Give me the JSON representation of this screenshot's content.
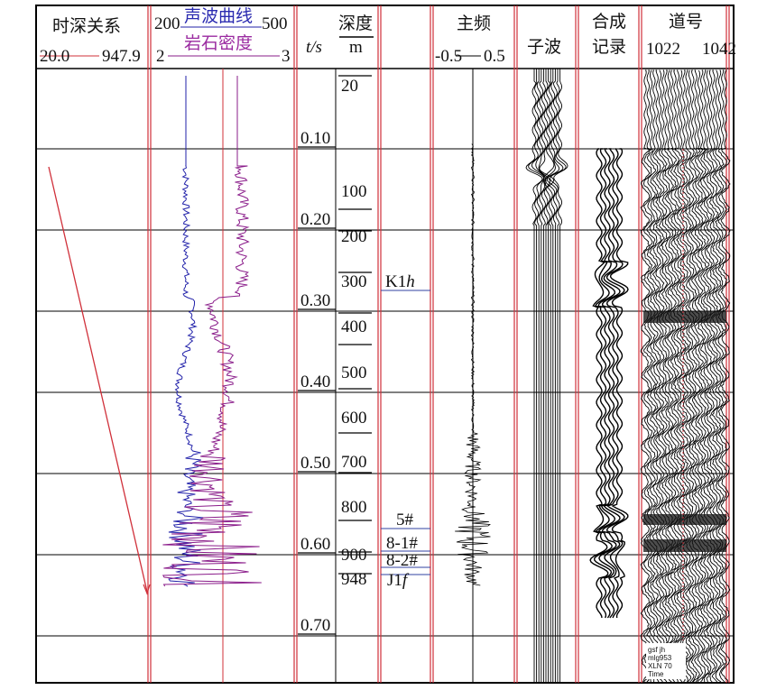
{
  "colors": {
    "border": "#000000",
    "red_line": "#d0303a",
    "sonic": "#2222aa",
    "density": "#8a1c8a",
    "grid": "#000000",
    "trace": "#000000"
  },
  "headers": {
    "time_depth": "时深关系",
    "time_depth_min": "20.0",
    "time_depth_max": "947.9",
    "sonic_label": "声波曲线",
    "sonic_min": "200",
    "sonic_max": "500",
    "density_label": "岩石密度",
    "density_min": "2",
    "density_max": "3",
    "time_unit": "t/s",
    "depth_label": "深度",
    "depth_unit": "m",
    "frequency": "主频",
    "freq_min": "-0.5",
    "freq_max": "0.5",
    "wavelet": "子波",
    "synthetic": "合成记录",
    "synthetic_line1": "合成",
    "synthetic_line2": "记录",
    "trace_no": "道号",
    "trace_min": "1022",
    "trace_max": "1042"
  },
  "time_ticks": [
    "0.10",
    "0.20",
    "0.30",
    "0.40",
    "0.50",
    "0.60",
    "0.70"
  ],
  "depth_ticks": [
    "20",
    "100",
    "200",
    "300",
    "400",
    "500",
    "600",
    "700",
    "800",
    "900",
    "948"
  ],
  "horizons": [
    {
      "label": "K1h",
      "base": "K1",
      "italic": "h"
    },
    {
      "label": "5#"
    },
    {
      "label": "8-1#"
    },
    {
      "label": "8-2#"
    },
    {
      "label": "J1f",
      "base": "J1",
      "italic": "f"
    }
  ],
  "corner_text": [
    "gsf jh",
    "mlg953",
    "XLN 70",
    "Time"
  ]
}
